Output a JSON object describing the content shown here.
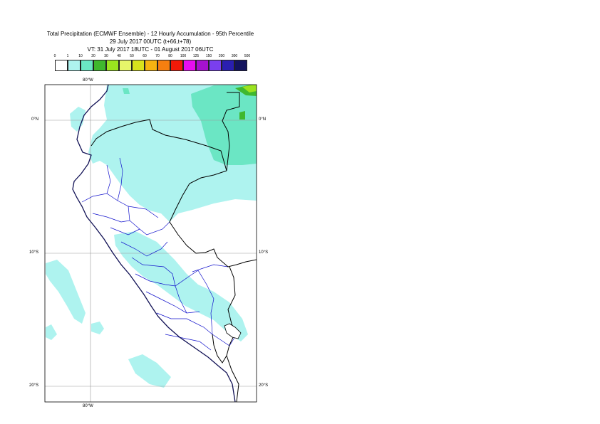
{
  "header": {
    "title_line1": "Total Precipitation (ECMWF Ensemble) - 12 Hourly Accumulation - 95th Percentile",
    "title_line2": "29 July 2017 00UTC (t+66,t+78)",
    "title_line3": "VT: 31 July 2017 18UTC - 01 August 2017 06UTC"
  },
  "legend": {
    "ticks": [
      "0",
      "1",
      "10",
      "20",
      "30",
      "40",
      "50",
      "60",
      "70",
      "80",
      "100",
      "125",
      "150",
      "200",
      "300",
      "500"
    ],
    "colors": [
      "#ffffff",
      "#aef3ef",
      "#6be6c4",
      "#3fb82e",
      "#9be31f",
      "#e6f56a",
      "#d8e21c",
      "#f5b311",
      "#f57f10",
      "#f21a08",
      "#e70ef0",
      "#a612cf",
      "#7a3fee",
      "#2a1fb0",
      "#13135e"
    ]
  },
  "map": {
    "top_lon_label": "80°W",
    "bottom_lon_label": "80°W",
    "lat_labels": [
      {
        "left": "0°N",
        "right": "0°N"
      },
      {
        "left": "10°S",
        "right": "10°S"
      },
      {
        "left": "20°S",
        "right": "20°S"
      }
    ],
    "fill_colors": {
      "light": "#aef3ef",
      "medium": "#6be6c4",
      "green": "#3fb82e",
      "yellow": "#9be31f"
    },
    "boundary_colors": {
      "country": "#000000",
      "coast": "#111155",
      "region": "#1212cc"
    }
  }
}
